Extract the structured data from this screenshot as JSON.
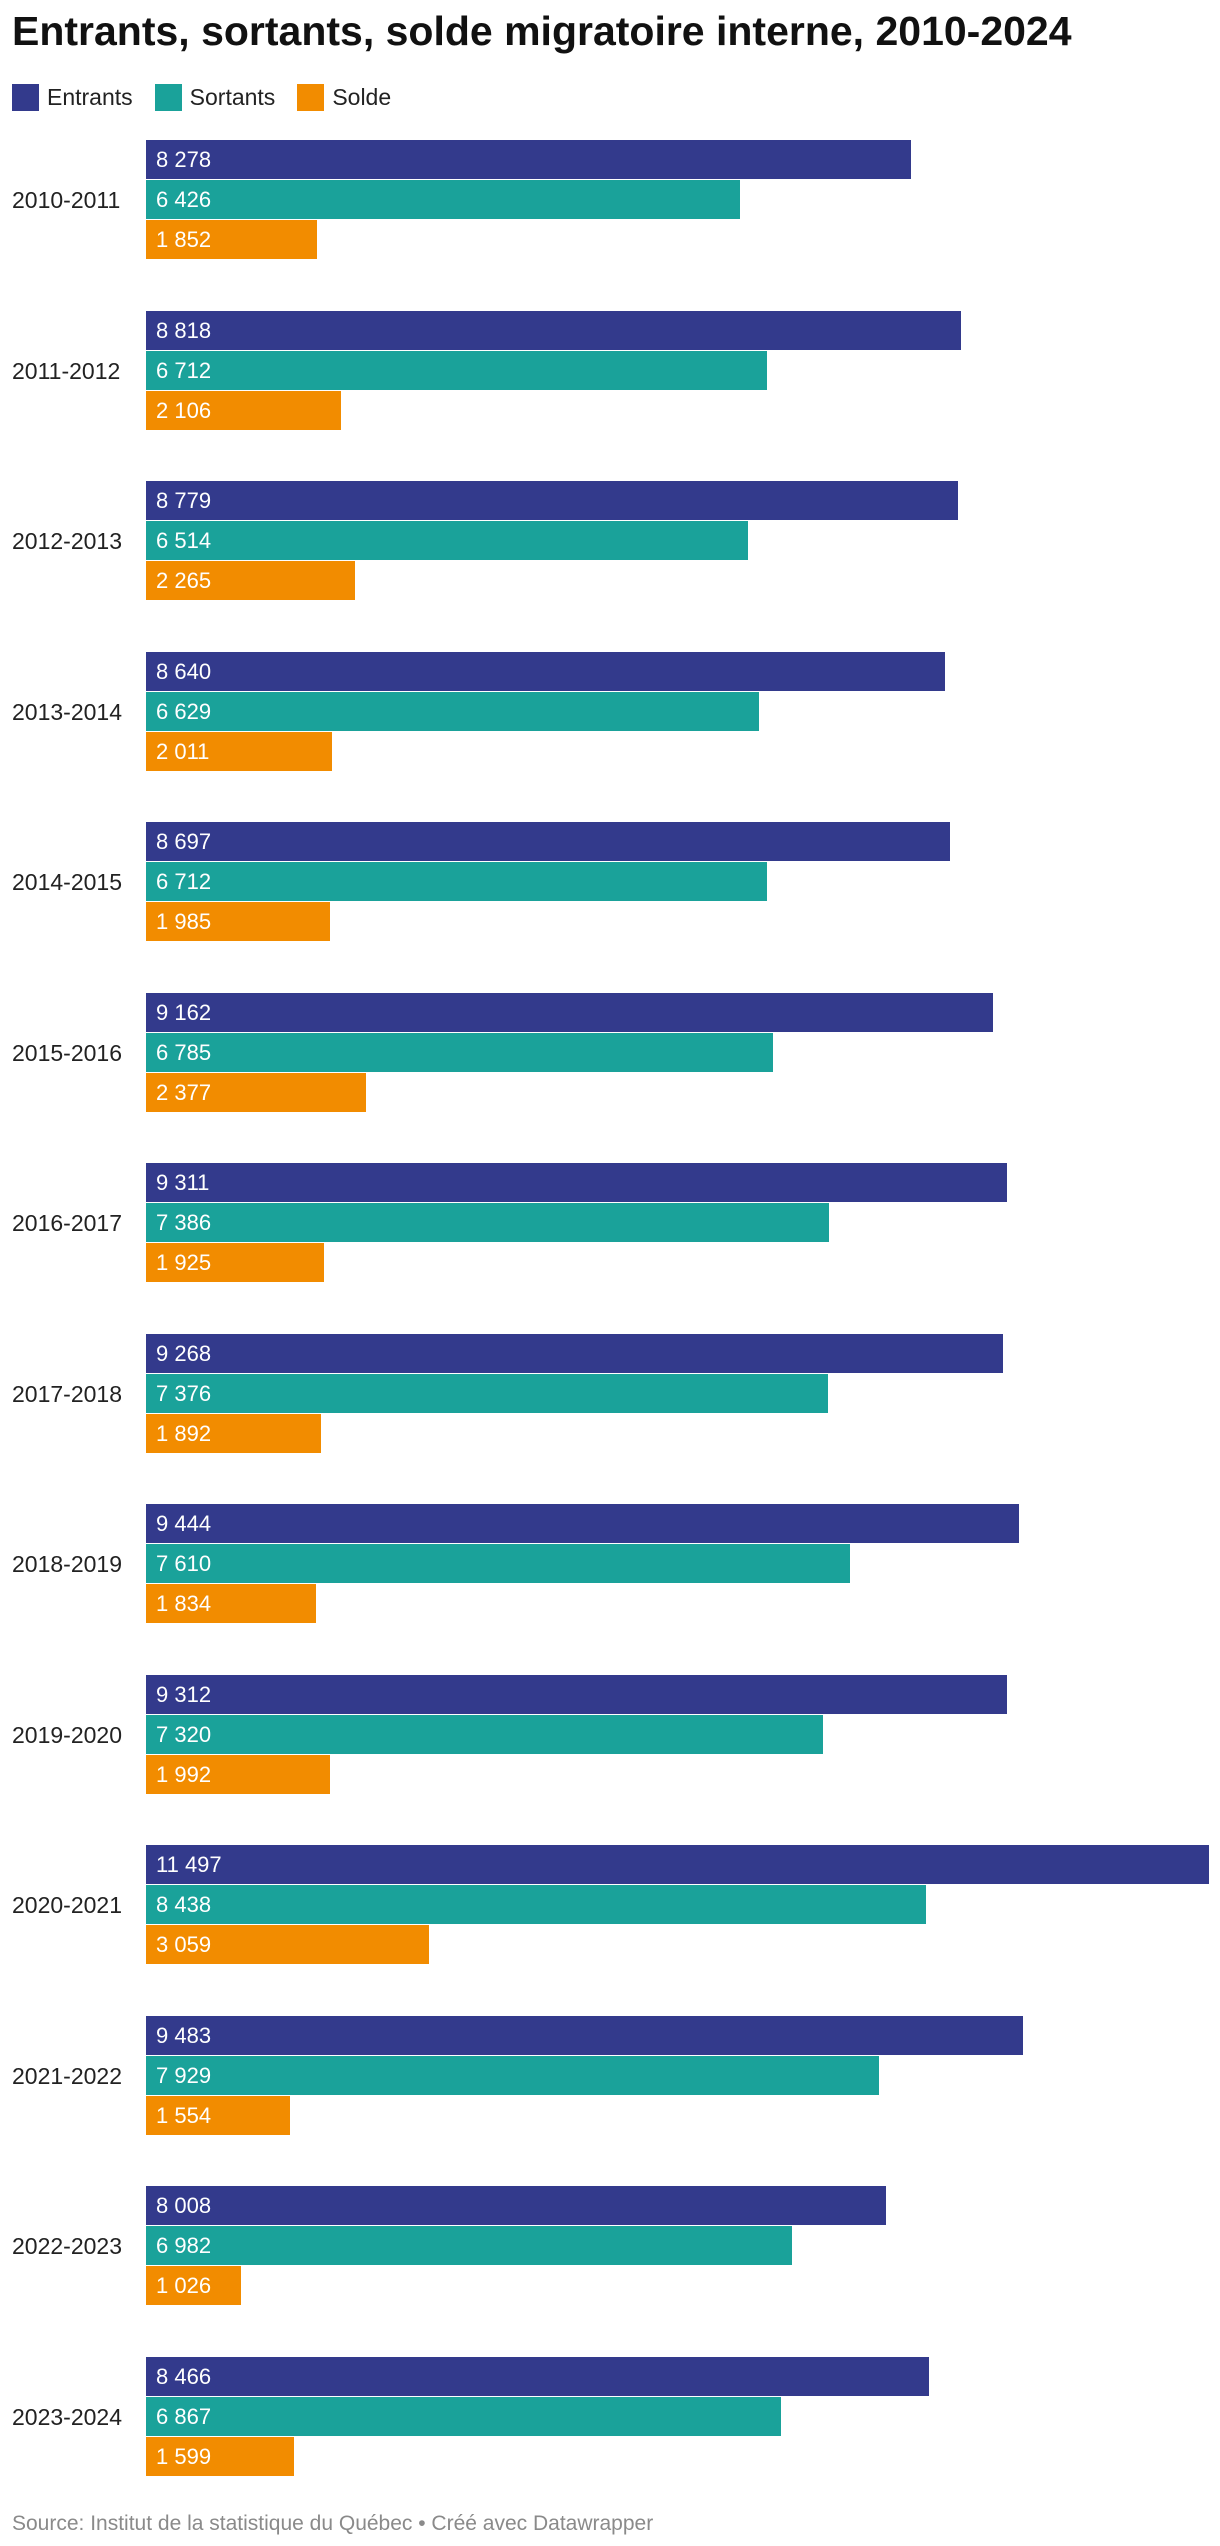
{
  "title": "Entrants, sortants, solde migratoire interne, 2010-2024",
  "legend": [
    {
      "name": "Entrants",
      "color": "#333a8c"
    },
    {
      "name": "Sortants",
      "color": "#1aa29a"
    },
    {
      "name": "Solde",
      "color": "#f28c00"
    }
  ],
  "source": "Source: Institut de la statistique du Québec • Créé avec Datawrapper",
  "chart_data": {
    "type": "bar",
    "orientation": "horizontal",
    "categories": [
      "2010-2011",
      "2011-2012",
      "2012-2013",
      "2013-2014",
      "2014-2015",
      "2015-2016",
      "2016-2017",
      "2017-2018",
      "2018-2019",
      "2019-2020",
      "2020-2021",
      "2021-2022",
      "2022-2023",
      "2023-2024"
    ],
    "series": [
      {
        "name": "Entrants",
        "color": "#333a8c",
        "values": [
          8278,
          8818,
          8779,
          8640,
          8697,
          9162,
          9311,
          9268,
          9444,
          9312,
          11497,
          9483,
          8008,
          8466
        ],
        "labels": [
          "8 278",
          "8 818",
          "8 779",
          "8 640",
          "8 697",
          "9 162",
          "9 311",
          "9 268",
          "9 444",
          "9 312",
          "11 497",
          "9 483",
          "8 008",
          "8 466"
        ]
      },
      {
        "name": "Sortants",
        "color": "#1aa29a",
        "values": [
          6426,
          6712,
          6514,
          6629,
          6712,
          6785,
          7386,
          7376,
          7610,
          7320,
          8438,
          7929,
          6982,
          6867
        ],
        "labels": [
          "6 426",
          "6 712",
          "6 514",
          "6 629",
          "6 712",
          "6 785",
          "7 386",
          "7 376",
          "7 610",
          "7 320",
          "8 438",
          "7 929",
          "6 982",
          "6 867"
        ]
      },
      {
        "name": "Solde",
        "color": "#f28c00",
        "values": [
          1852,
          2106,
          2265,
          2011,
          1985,
          2377,
          1925,
          1892,
          1834,
          1992,
          3059,
          1554,
          1026,
          1599
        ],
        "labels": [
          "1 852",
          "2 106",
          "2 265",
          "2 011",
          "1 985",
          "2 377",
          "1 925",
          "1 892",
          "1 834",
          "1 992",
          "3 059",
          "1 554",
          "1 026",
          "1 599"
        ]
      }
    ],
    "xlim": [
      0,
      11497
    ],
    "grid": false,
    "legend_position": "top-left"
  }
}
